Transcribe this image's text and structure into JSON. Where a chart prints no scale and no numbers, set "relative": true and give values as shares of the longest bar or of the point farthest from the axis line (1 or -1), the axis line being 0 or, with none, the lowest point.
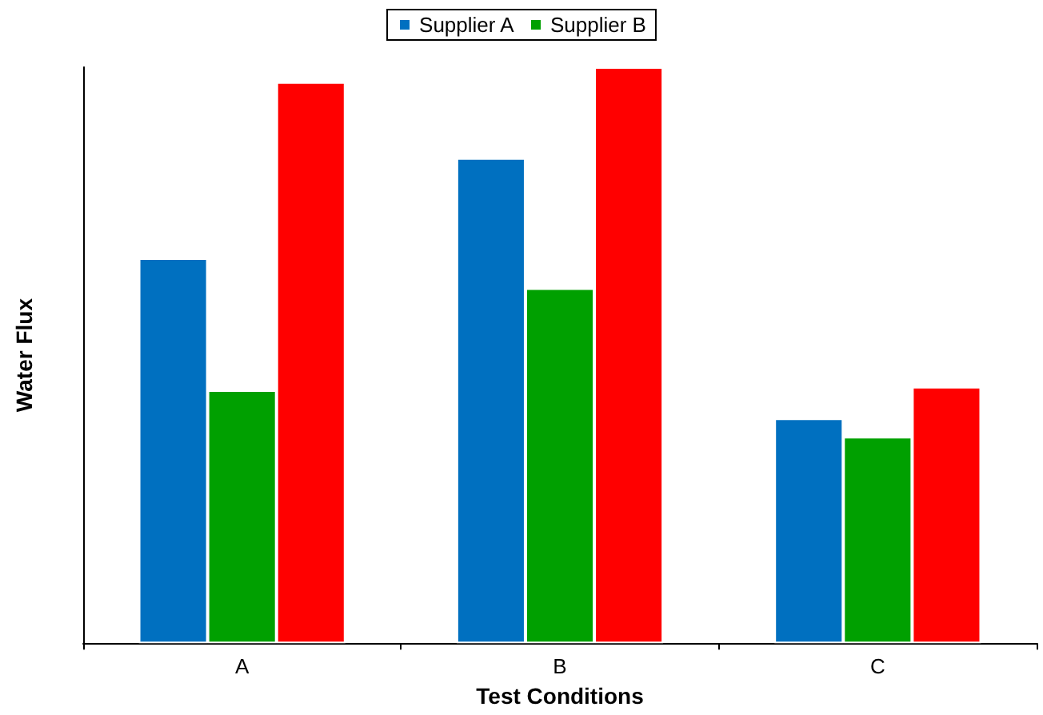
{
  "chart_data": {
    "type": "bar",
    "relative": true,
    "xlabel": "Test Conditions",
    "ylabel": "Water Flux",
    "categories": [
      "A",
      "B",
      "C"
    ],
    "legend": "top",
    "grid": false,
    "series": [
      {
        "name": "Supplier A",
        "color": "#0070c0",
        "values": [
          0.668,
          0.842,
          0.39
        ]
      },
      {
        "name": "Supplier B",
        "color": "#00a000",
        "values": [
          0.439,
          0.616,
          0.358
        ]
      },
      {
        "color": "#ff0000",
        "values": [
          0.974,
          1,
          0.445
        ]
      }
    ]
  }
}
